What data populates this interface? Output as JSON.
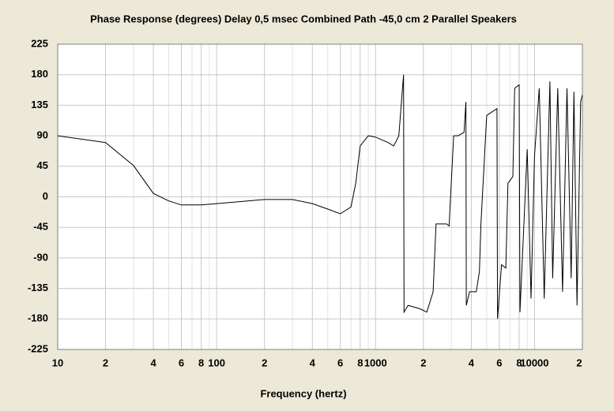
{
  "chart_data": {
    "type": "line",
    "title": "Phase Response (degrees)   Delay 0,5 msec   Combined   Path -45,0 cm   2 Parallel Speakers",
    "x_label": "Frequency (hertz)",
    "log_x": true,
    "grid": true,
    "xlim": [
      10,
      20000
    ],
    "ylim": [
      -225,
      225
    ],
    "yticks": [
      -225,
      -180,
      -135,
      -90,
      -45,
      0,
      45,
      90,
      135,
      180,
      225
    ],
    "xticks": [
      10,
      {
        "value": 20,
        "label": "2"
      },
      {
        "value": 40,
        "label": "4"
      },
      {
        "value": 60,
        "label": "6"
      },
      {
        "value": 80,
        "label": "8"
      },
      100,
      {
        "value": 200,
        "label": "2"
      },
      {
        "value": 400,
        "label": "4"
      },
      {
        "value": 600,
        "label": "6"
      },
      {
        "value": 800,
        "label": "8"
      },
      1000,
      {
        "value": 2000,
        "label": "2"
      },
      {
        "value": 4000,
        "label": "4"
      },
      {
        "value": 6000,
        "label": "6"
      },
      {
        "value": 8000,
        "label": "8"
      },
      10000,
      {
        "value": 20000,
        "label": "2"
      }
    ],
    "x_minor_gridlines": [
      30,
      50,
      70,
      90,
      300,
      500,
      700,
      900,
      3000,
      5000,
      7000,
      9000
    ],
    "series": [
      {
        "name": "Phase",
        "color": "#000000",
        "x": [
          10,
          20,
          30,
          40,
          50,
          60,
          80,
          100,
          200,
          300,
          400,
          500,
          600,
          700,
          750,
          800,
          900,
          1000,
          1200,
          1300,
          1400,
          1500,
          1510,
          1600,
          1900,
          2100,
          2300,
          2400,
          2800,
          2900,
          3100,
          3300,
          3600,
          3700,
          3720,
          3900,
          4300,
          4500,
          4600,
          5000,
          5800,
          5850,
          6200,
          6600,
          6800,
          7300,
          7500,
          8000,
          8100,
          9000,
          9500,
          10000,
          10700,
          11500,
          12500,
          13000,
          14000,
          15000,
          16000,
          17000,
          17700,
          18500,
          19500,
          20000
        ],
        "values": [
          90,
          80,
          46,
          5,
          -6,
          -12,
          -12,
          -10,
          -4,
          -4,
          -10,
          -18,
          -25,
          -15,
          20,
          75,
          90,
          88,
          80,
          75,
          90,
          180,
          -170,
          -160,
          -165,
          -170,
          -140,
          -40,
          -40,
          -43,
          90,
          90,
          95,
          140,
          -160,
          -140,
          -140,
          -110,
          -40,
          120,
          130,
          -180,
          -100,
          -105,
          20,
          30,
          160,
          165,
          -170,
          70,
          -150,
          60,
          160,
          -150,
          170,
          -120,
          160,
          -140,
          160,
          -120,
          155,
          -160,
          140,
          150
        ]
      }
    ]
  }
}
